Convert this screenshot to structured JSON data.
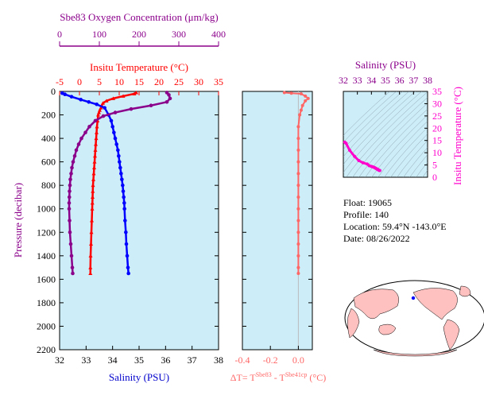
{
  "colors": {
    "panel_bg": "#cdeef8",
    "oxygen": "#8b008b",
    "temperature": "#ff0000",
    "salinity": "#0000ff",
    "delta_t": "#ff6666",
    "ts_curve": "#ff00cc",
    "land": "#ffc0c0",
    "ocean": "#ffffff"
  },
  "info": {
    "float": "Float:  19065",
    "profile": "Profile:  140",
    "location": "Location:  59.4°N  -143.0°E",
    "date": "Date:  08/26/2022"
  },
  "chart_data": [
    {
      "type": "line",
      "panel": "profile",
      "ylabel": "Pressure (decibar)",
      "ylim": [
        2200,
        0
      ],
      "yticks": [
        "0",
        "200",
        "400",
        "600",
        "800",
        "1000",
        "1200",
        "1400",
        "1600",
        "1800",
        "2000",
        "2200"
      ],
      "axes": {
        "oxygen": {
          "label": "Sbe83 Oxygen Concentration (μm/kg)",
          "range": [
            0,
            400
          ],
          "ticks": [
            "0",
            "100",
            "200",
            "300",
            "400"
          ]
        },
        "temperature": {
          "label": "Insitu Temperature (°C)",
          "range": [
            -5,
            35
          ],
          "ticks": [
            "-5",
            "0",
            "5",
            "10",
            "15",
            "20",
            "25",
            "30",
            "35"
          ]
        },
        "salinity": {
          "label": "Salinity (PSU)",
          "range": [
            32,
            38
          ],
          "ticks": [
            "32",
            "33",
            "34",
            "35",
            "36",
            "37",
            "38"
          ]
        }
      },
      "series": [
        {
          "axis": "temperature",
          "points": [
            [
              14.3,
              10
            ],
            [
              13.8,
              20
            ],
            [
              11,
              40
            ],
            [
              8.5,
              60
            ],
            [
              6.8,
              80
            ],
            [
              5.9,
              100
            ],
            [
              5.6,
              120
            ],
            [
              5.4,
              140
            ],
            [
              5.1,
              160
            ],
            [
              4.9,
              180
            ],
            [
              4.7,
              200
            ],
            [
              4.55,
              250
            ],
            [
              4.4,
              300
            ],
            [
              4.3,
              350
            ],
            [
              4.2,
              400
            ],
            [
              4.1,
              450
            ],
            [
              4.0,
              500
            ],
            [
              3.9,
              550
            ],
            [
              3.8,
              600
            ],
            [
              3.7,
              650
            ],
            [
              3.6,
              700
            ],
            [
              3.5,
              750
            ],
            [
              3.4,
              800
            ],
            [
              3.35,
              850
            ],
            [
              3.3,
              900
            ],
            [
              3.25,
              950
            ],
            [
              3.2,
              1000
            ],
            [
              3.1,
              1100
            ],
            [
              3.0,
              1200
            ],
            [
              2.9,
              1300
            ],
            [
              2.8,
              1400
            ],
            [
              2.75,
              1500
            ],
            [
              2.75,
              1550
            ]
          ]
        },
        {
          "axis": "salinity",
          "points": [
            [
              32.1,
              15
            ],
            [
              32.2,
              25
            ],
            [
              32.45,
              45
            ],
            [
              32.8,
              70
            ],
            [
              33.1,
              90
            ],
            [
              33.4,
              110
            ],
            [
              33.7,
              140
            ],
            [
              33.85,
              200
            ],
            [
              33.95,
              250
            ],
            [
              34.0,
              300
            ],
            [
              34.05,
              350
            ],
            [
              34.1,
              400
            ],
            [
              34.15,
              450
            ],
            [
              34.2,
              500
            ],
            [
              34.23,
              550
            ],
            [
              34.26,
              600
            ],
            [
              34.29,
              650
            ],
            [
              34.32,
              700
            ],
            [
              34.35,
              750
            ],
            [
              34.38,
              800
            ],
            [
              34.4,
              850
            ],
            [
              34.42,
              900
            ],
            [
              34.44,
              950
            ],
            [
              34.45,
              1000
            ],
            [
              34.47,
              1100
            ],
            [
              34.5,
              1200
            ],
            [
              34.52,
              1300
            ],
            [
              34.55,
              1400
            ],
            [
              34.58,
              1500
            ],
            [
              34.6,
              1550
            ]
          ]
        },
        {
          "axis": "oxygen",
          "points": [
            [
              270,
              10
            ],
            [
              275,
              30
            ],
            [
              278,
              60
            ],
            [
              270,
              90
            ],
            [
              230,
              120
            ],
            [
              180,
              150
            ],
            [
              140,
              180
            ],
            [
              110,
              210
            ],
            [
              90,
              250
            ],
            [
              75,
              300
            ],
            [
              65,
              350
            ],
            [
              55,
              400
            ],
            [
              48,
              450
            ],
            [
              42,
              500
            ],
            [
              38,
              550
            ],
            [
              34,
              600
            ],
            [
              31,
              650
            ],
            [
              29,
              700
            ],
            [
              27,
              750
            ],
            [
              26,
              800
            ],
            [
              25,
              850
            ],
            [
              24.5,
              900
            ],
            [
              24,
              950
            ],
            [
              24,
              1000
            ],
            [
              25,
              1100
            ],
            [
              26,
              1200
            ],
            [
              28,
              1300
            ],
            [
              30,
              1400
            ],
            [
              32,
              1500
            ],
            [
              33,
              1550
            ]
          ]
        }
      ]
    },
    {
      "type": "line",
      "panel": "delta_t",
      "xlabel": "ΔT= T",
      "xlabel_sup1": "Sbe83",
      "xlabel_mid": " - T",
      "xlabel_sup2": "Sbe41cp",
      "xlabel_unit": " (°C)",
      "xlim": [
        -0.4,
        0.1
      ],
      "xticks": [
        "-0.4",
        "-0.2",
        "0.0"
      ],
      "ylim": [
        2200,
        0
      ],
      "points": [
        [
          -0.1,
          10
        ],
        [
          -0.05,
          15
        ],
        [
          0.02,
          20
        ],
        [
          0.05,
          40
        ],
        [
          0.07,
          60
        ],
        [
          0.05,
          80
        ],
        [
          0.03,
          120
        ],
        [
          0.02,
          160
        ],
        [
          0.01,
          200
        ],
        [
          0.0,
          300
        ],
        [
          0.0,
          400
        ],
        [
          0.0,
          500
        ],
        [
          0.0,
          600
        ],
        [
          0.0,
          700
        ],
        [
          0.0,
          800
        ],
        [
          0.0,
          900
        ],
        [
          0.0,
          1000
        ],
        [
          0.0,
          1100
        ],
        [
          0.0,
          1200
        ],
        [
          0.0,
          1300
        ],
        [
          0.0,
          1400
        ],
        [
          0.0,
          1500
        ],
        [
          0.0,
          1550
        ]
      ]
    },
    {
      "type": "scatter",
      "panel": "ts_diagram",
      "xlabel": "Salinity (PSU)",
      "ylabel": "Insitu Temperature (°C)",
      "xlim": [
        32,
        38
      ],
      "ylim": [
        0,
        35
      ],
      "xticks": [
        "32",
        "33",
        "34",
        "35",
        "36",
        "37",
        "38"
      ],
      "yticks": [
        "0",
        "5",
        "10",
        "15",
        "20",
        "25",
        "30",
        "35"
      ],
      "points": [
        [
          32.1,
          14.3
        ],
        [
          32.2,
          13.8
        ],
        [
          32.45,
          11
        ],
        [
          32.8,
          8.5
        ],
        [
          33.1,
          6.8
        ],
        [
          33.4,
          5.9
        ],
        [
          33.7,
          5.4
        ],
        [
          33.85,
          4.7
        ],
        [
          34.0,
          4.4
        ],
        [
          34.1,
          4.2
        ],
        [
          34.2,
          4.0
        ],
        [
          34.26,
          3.8
        ],
        [
          34.32,
          3.6
        ],
        [
          34.38,
          3.4
        ],
        [
          34.42,
          3.3
        ],
        [
          34.45,
          3.2
        ],
        [
          34.5,
          3.0
        ],
        [
          34.55,
          2.8
        ],
        [
          34.6,
          2.75
        ]
      ]
    }
  ]
}
